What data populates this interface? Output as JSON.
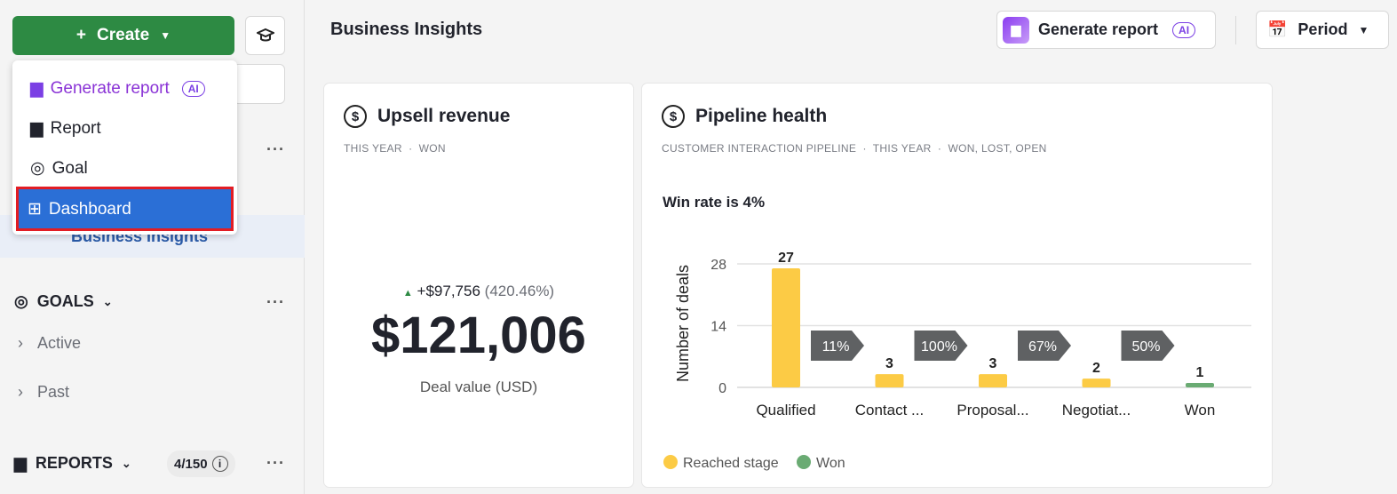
{
  "sidebar": {
    "create_label": "Create",
    "business_insights": "Business Insights",
    "goals": {
      "title": "GOALS",
      "items": [
        "Active",
        "Past"
      ]
    },
    "reports": {
      "title": "REPORTS",
      "badge": "4/150"
    }
  },
  "create_menu": {
    "items": [
      {
        "label": "Generate report",
        "badge": "AI"
      },
      {
        "label": "Report"
      },
      {
        "label": "Goal"
      },
      {
        "label": "Dashboard",
        "selected": true
      }
    ]
  },
  "header": {
    "title": "Business Insights",
    "generate_report": "Generate report",
    "ai_badge": "AI",
    "period": "Period"
  },
  "upsell": {
    "title": "Upsell revenue",
    "filters": "THIS YEAR  ·  WON",
    "change": "+$97,756",
    "change_pct": "(420.46%)",
    "value": "$121,006",
    "caption": "Deal value (USD)"
  },
  "pipeline": {
    "title": "Pipeline health",
    "filters": "CUSTOMER INTERACTION PIPELINE  ·  THIS YEAR  ·  WON, LOST, OPEN",
    "win_rate": "Win rate is 4%"
  },
  "colors": {
    "accent": "#2d8a43",
    "reached": "#fccb45",
    "won": "#6aab73",
    "conversion": "#5f6163",
    "selected": "#2b6fd6"
  },
  "chart_data": {
    "type": "bar",
    "categories": [
      "Qualified",
      "Contact ...",
      "Proposal...",
      "Negotiat...",
      "Won"
    ],
    "values": [
      27,
      3,
      3,
      2,
      1
    ],
    "ylabel": "Number of deals",
    "yticks": [
      0,
      14,
      28
    ],
    "ylim": [
      0,
      28
    ],
    "conversions": [
      "11%",
      "100%",
      "67%",
      "50%"
    ],
    "series": [
      {
        "name": "Reached stage",
        "color": "#fccb45"
      },
      {
        "name": "Won",
        "color": "#6aab73"
      }
    ],
    "legend": "bottom-left",
    "grid": true
  }
}
